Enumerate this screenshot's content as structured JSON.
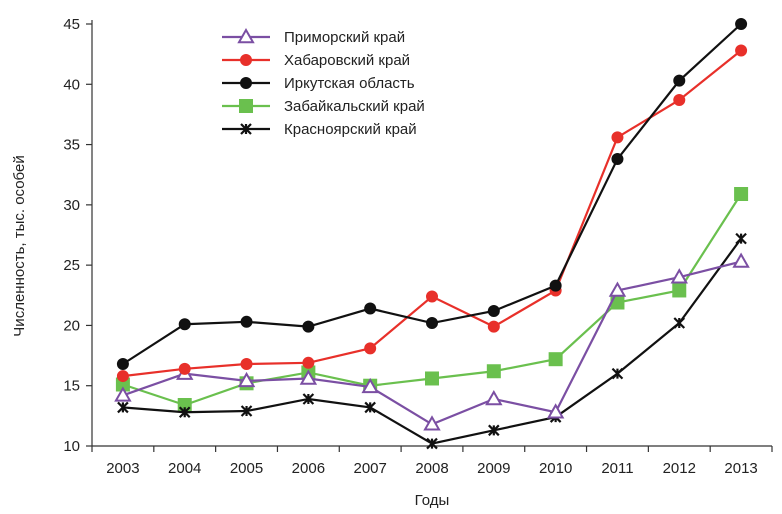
{
  "chart_data": {
    "type": "line",
    "title": "",
    "xlabel": "Годы",
    "ylabel": "Численность, тыс. особей",
    "x": [
      "2003",
      "2004",
      "2005",
      "2006",
      "2007",
      "2008",
      "2009",
      "2010",
      "2011",
      "2012",
      "2013"
    ],
    "ylim": [
      10,
      45
    ],
    "yticks": [
      10,
      15,
      20,
      25,
      30,
      35,
      40,
      45
    ],
    "grid": false,
    "legend": "top-center",
    "series": [
      {
        "name": "Приморский край",
        "color": "#7b4fa3",
        "marker": "triangle-open",
        "values": [
          14.2,
          16.0,
          15.4,
          15.6,
          14.9,
          11.8,
          13.9,
          12.8,
          22.9,
          24.0,
          25.3
        ]
      },
      {
        "name": "Хабаровский край",
        "color": "#e8302a",
        "marker": "circle",
        "values": [
          15.8,
          16.4,
          16.8,
          16.9,
          18.1,
          22.4,
          19.9,
          22.9,
          35.6,
          38.7,
          42.8
        ]
      },
      {
        "name": "Иркутская область",
        "color": "#111111",
        "marker": "circle",
        "values": [
          16.8,
          20.1,
          20.3,
          19.9,
          21.4,
          20.2,
          21.2,
          23.3,
          33.8,
          40.3,
          45.0
        ]
      },
      {
        "name": "Забайкальский край",
        "color": "#6ac04e",
        "marker": "square",
        "values": [
          15.1,
          13.4,
          15.2,
          16.1,
          15.0,
          15.6,
          16.2,
          17.2,
          21.9,
          22.9,
          30.9
        ]
      },
      {
        "name": "Красноярский край",
        "color": "#111111",
        "marker": "x",
        "values": [
          13.2,
          12.8,
          12.9,
          13.9,
          13.2,
          10.2,
          11.3,
          12.4,
          16.0,
          20.2,
          27.2
        ]
      }
    ]
  }
}
